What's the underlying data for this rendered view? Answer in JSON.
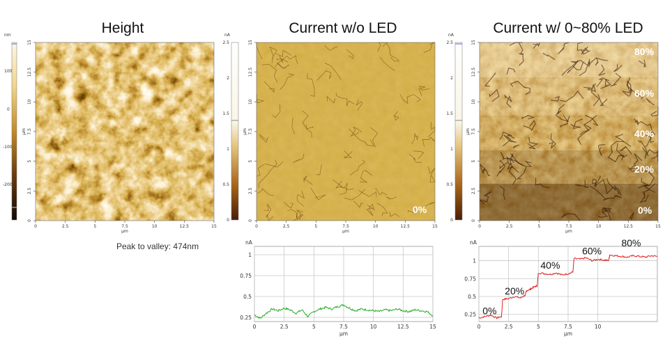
{
  "panels": {
    "height": {
      "title": "Height",
      "colorbar_unit": "nm",
      "colorbar_ticks": [
        "100",
        "0",
        "-100",
        "-200"
      ],
      "axis_unit": "µm",
      "axis_ticks": [
        "0",
        "2.5",
        "5",
        "7.5",
        "10",
        "12.5",
        "15"
      ],
      "caption": "Peak to valley: 474nm"
    },
    "current_no_led": {
      "title": "Current w/o LED",
      "colorbar_unit": "nA",
      "colorbar_ticks": [
        "2.5",
        "2",
        "1.5",
        "1",
        "0.5",
        "0"
      ],
      "axis_unit": "µm",
      "axis_ticks": [
        "0",
        "2.5",
        "5",
        "7.5",
        "10",
        "12.5",
        "15"
      ],
      "overlay_label": "0%"
    },
    "current_led": {
      "title": "Current w/ 0~80% LED",
      "colorbar_unit": "nA",
      "colorbar_ticks": [
        "2.5",
        "2",
        "1.5",
        "1",
        "0.5",
        "0"
      ],
      "axis_unit": "µm",
      "axis_ticks": [
        "0",
        "2.5",
        "5",
        "7.5",
        "10",
        "12.5",
        "15"
      ],
      "overlay_labels": [
        "80%",
        "60%",
        "40%",
        "20%",
        "0%"
      ]
    }
  },
  "chart_data": [
    {
      "type": "line",
      "title": "",
      "xlabel": "µm",
      "ylabel": "nA",
      "xlim": [
        0,
        15
      ],
      "ylim": [
        0.2,
        1.1
      ],
      "x_ticks": [
        "0",
        "2.5",
        "5",
        "7.5",
        "10",
        "12.5",
        "15"
      ],
      "y_ticks": [
        "1",
        "0.75",
        "0.5",
        "0.25"
      ],
      "grid": true,
      "color": "#22aa22",
      "x": [
        0,
        0.5,
        1,
        1.5,
        2,
        2.5,
        3,
        3.5,
        4,
        4.5,
        5,
        5.5,
        6,
        6.5,
        7,
        7.5,
        8,
        8.5,
        9,
        9.5,
        10,
        10.5,
        11,
        11.5,
        12,
        12.5,
        13,
        13.5,
        14,
        14.5,
        15
      ],
      "y": [
        0.28,
        0.24,
        0.3,
        0.35,
        0.33,
        0.36,
        0.34,
        0.3,
        0.34,
        0.26,
        0.32,
        0.35,
        0.37,
        0.35,
        0.38,
        0.4,
        0.36,
        0.33,
        0.35,
        0.34,
        0.33,
        0.32,
        0.34,
        0.33,
        0.35,
        0.33,
        0.32,
        0.34,
        0.33,
        0.32,
        0.27
      ]
    },
    {
      "type": "line",
      "title": "",
      "xlabel": "µm",
      "ylabel": "nA",
      "xlim": [
        0,
        15
      ],
      "ylim": [
        0.15,
        1.2
      ],
      "x_ticks": [
        "0",
        "2.5",
        "5",
        "7.5",
        "10"
      ],
      "y_ticks": [
        "1",
        "0.75",
        "0.5",
        "0.25"
      ],
      "grid": true,
      "color": "#e02020",
      "x": [
        0,
        0.5,
        1,
        1.5,
        1.9,
        2.0,
        2.5,
        3,
        3.5,
        3.9,
        4.0,
        4.3,
        4.6,
        4.9,
        5.0,
        5.5,
        6,
        6.5,
        7,
        7.5,
        7.9,
        8.0,
        8.5,
        9,
        9.5,
        10,
        10.5,
        10.9,
        11.0,
        11.5,
        12,
        12.5,
        13,
        13.5,
        14,
        14.5,
        15
      ],
      "y": [
        0.2,
        0.22,
        0.24,
        0.2,
        0.22,
        0.46,
        0.47,
        0.5,
        0.48,
        0.52,
        0.58,
        0.6,
        0.63,
        0.65,
        0.83,
        0.82,
        0.81,
        0.83,
        0.8,
        0.82,
        0.84,
        1.03,
        1.02,
        1.04,
        1.0,
        1.02,
        1.01,
        1.0,
        1.08,
        1.07,
        1.06,
        1.05,
        1.07,
        1.06,
        1.05,
        1.07,
        1.06
      ],
      "annotations": [
        "0%",
        "20%",
        "40%",
        "60%",
        "80%"
      ]
    }
  ]
}
